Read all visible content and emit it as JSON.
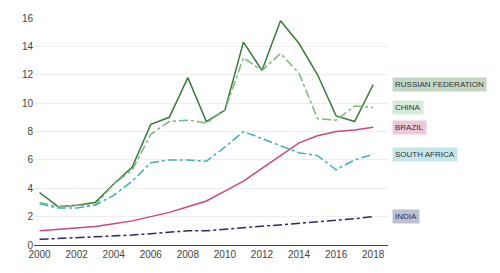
{
  "chart_data": {
    "type": "line",
    "x": [
      2000,
      2001,
      2002,
      2003,
      2004,
      2005,
      2006,
      2007,
      2008,
      2009,
      2010,
      2011,
      2012,
      2013,
      2014,
      2015,
      2016,
      2017,
      2018
    ],
    "series": [
      {
        "name": "RUSSIAN FEDERATION",
        "color": "#3a7a3a",
        "line_style": "solid",
        "values": [
          3.7,
          2.7,
          2.8,
          3.0,
          4.3,
          5.5,
          8.5,
          9.0,
          11.8,
          8.7,
          9.5,
          14.3,
          12.3,
          15.8,
          14.2,
          12.0,
          9.1,
          8.7,
          11.3
        ]
      },
      {
        "name": "CHINA",
        "color": "#7ab87a",
        "line_style": "dashdot",
        "values": [
          3.0,
          2.7,
          2.8,
          2.8,
          4.3,
          5.3,
          7.8,
          8.7,
          8.8,
          8.6,
          9.5,
          13.2,
          12.3,
          13.5,
          12.1,
          8.9,
          8.8,
          9.8,
          9.7
        ]
      },
      {
        "name": "BRAZIL",
        "color": "#c84882",
        "line_style": "solid",
        "values": [
          1.0,
          1.1,
          1.2,
          1.3,
          1.5,
          1.7,
          2.0,
          2.3,
          2.7,
          3.1,
          3.8,
          4.5,
          5.4,
          6.3,
          7.2,
          7.7,
          8.0,
          8.1,
          8.3
        ]
      },
      {
        "name": "SOUTH AFRICA",
        "color": "#40b0b8",
        "line_style": "dashdot",
        "values": [
          2.9,
          2.6,
          2.6,
          2.8,
          3.5,
          4.5,
          5.8,
          6.0,
          6.0,
          5.9,
          6.9,
          8.0,
          7.5,
          7.0,
          6.5,
          6.3,
          5.3,
          6.0,
          6.4
        ]
      },
      {
        "name": "INDIA",
        "color": "#2a2a6a",
        "line_style": "dashdot",
        "values": [
          0.4,
          0.45,
          0.5,
          0.55,
          0.6,
          0.7,
          0.8,
          0.9,
          1.0,
          1.0,
          1.1,
          1.2,
          1.3,
          1.4,
          1.5,
          1.6,
          1.7,
          1.85,
          2.0
        ]
      }
    ],
    "xlim": [
      1999.7,
      2018.8
    ],
    "xticks": [
      2000,
      2002,
      2004,
      2006,
      2008,
      2010,
      2012,
      2014,
      2016,
      2018
    ],
    "ylim": [
      0,
      16
    ],
    "yticks": [
      0,
      2,
      4,
      6,
      8,
      10,
      12,
      14,
      16
    ],
    "grid": true
  }
}
